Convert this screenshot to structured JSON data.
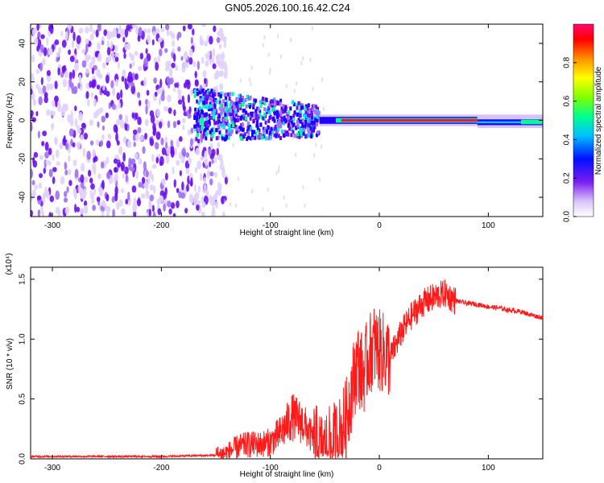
{
  "title": "GN05.2026.100.16.42.C24",
  "chart_data": [
    {
      "type": "heatmap",
      "name": "spectrogram",
      "title": "GN05.2026.100.16.42.C24",
      "xlabel": "Height of straight line (km)",
      "ylabel": "Frequency (Hz)",
      "xlim": [
        -320,
        150
      ],
      "ylim": [
        -50,
        50
      ],
      "xticks": [
        -300,
        -200,
        -100,
        0,
        100
      ],
      "xtick_labels": [
        "-300",
        "-200",
        "-100",
        "0",
        "100"
      ],
      "yticks": [
        -40,
        -20,
        0,
        20,
        40
      ],
      "ytick_labels": [
        "-40",
        "-20",
        "0",
        "20",
        "40"
      ],
      "colorbar": {
        "label": "Normalized spectral amplitude",
        "range": [
          0,
          1
        ],
        "ticks": [
          0.0,
          0.2,
          0.4,
          0.6,
          0.8
        ],
        "tick_labels": [
          "0.0",
          "0.2",
          "0.4",
          "0.6",
          "0.8"
        ],
        "colors": [
          "#ffffff",
          "#b48cf0",
          "#5a00f0",
          "#0000ff",
          "#00c8ff",
          "#00ff80",
          "#80ff00",
          "#ffff00",
          "#ffa000",
          "#ff0000",
          "#ff0060"
        ]
      },
      "regions": [
        {
          "x_range": [
            -320,
            -140
          ],
          "freq_range": [
            -50,
            50
          ],
          "description": "broadband noise",
          "level": 0.25
        },
        {
          "x_range": [
            -170,
            -55
          ],
          "freq_range": [
            -10,
            15
          ],
          "description": "scattered energy near 0 Hz",
          "level": 0.4
        },
        {
          "x_range": [
            -55,
            90
          ],
          "freq_range": [
            -2,
            2
          ],
          "description": "strong narrow band at 0 Hz",
          "level": 1.0
        },
        {
          "x_range": [
            90,
            150
          ],
          "freq_range": [
            -3,
            3
          ],
          "description": "band at about -1 Hz",
          "level": 0.5
        }
      ]
    },
    {
      "type": "line",
      "name": "snr",
      "xlabel": "Height of straight line (km)",
      "ylabel": "SNR (10 * v/v)",
      "y_scale_label": "(x10⁴)",
      "xlim": [
        -320,
        150
      ],
      "ylim": [
        0,
        1.6
      ],
      "xticks": [
        -300,
        -200,
        -100,
        0,
        100
      ],
      "xtick_labels": [
        "-300",
        "-200",
        "-100",
        "0",
        "100"
      ],
      "yticks": [
        0.0,
        0.5,
        1.0,
        1.5
      ],
      "ytick_labels": [
        "0.0",
        "0.5",
        "1.0",
        "1.5"
      ],
      "series": [
        {
          "name": "SNR",
          "color": "#ff1a1a",
          "x": [
            -320,
            -250,
            -200,
            -150,
            -140,
            -130,
            -120,
            -110,
            -100,
            -90,
            -80,
            -70,
            -60,
            -55,
            -50,
            -45,
            -40,
            -35,
            -30,
            -25,
            -20,
            -15,
            -10,
            -5,
            0,
            10,
            20,
            30,
            40,
            50,
            60,
            70,
            80,
            90,
            100,
            110,
            120,
            130,
            140,
            150
          ],
          "values": [
            0.02,
            0.02,
            0.02,
            0.03,
            0.05,
            0.1,
            0.12,
            0.12,
            0.14,
            0.22,
            0.35,
            0.3,
            0.15,
            0.06,
            0.05,
            0.1,
            0.15,
            0.2,
            0.35,
            0.6,
            0.8,
            0.7,
            0.85,
            0.95,
            0.9,
            0.85,
            1.05,
            1.2,
            1.3,
            1.35,
            1.38,
            1.32,
            1.3,
            1.29,
            1.27,
            1.26,
            1.24,
            1.23,
            1.2,
            1.18
          ]
        }
      ]
    }
  ]
}
